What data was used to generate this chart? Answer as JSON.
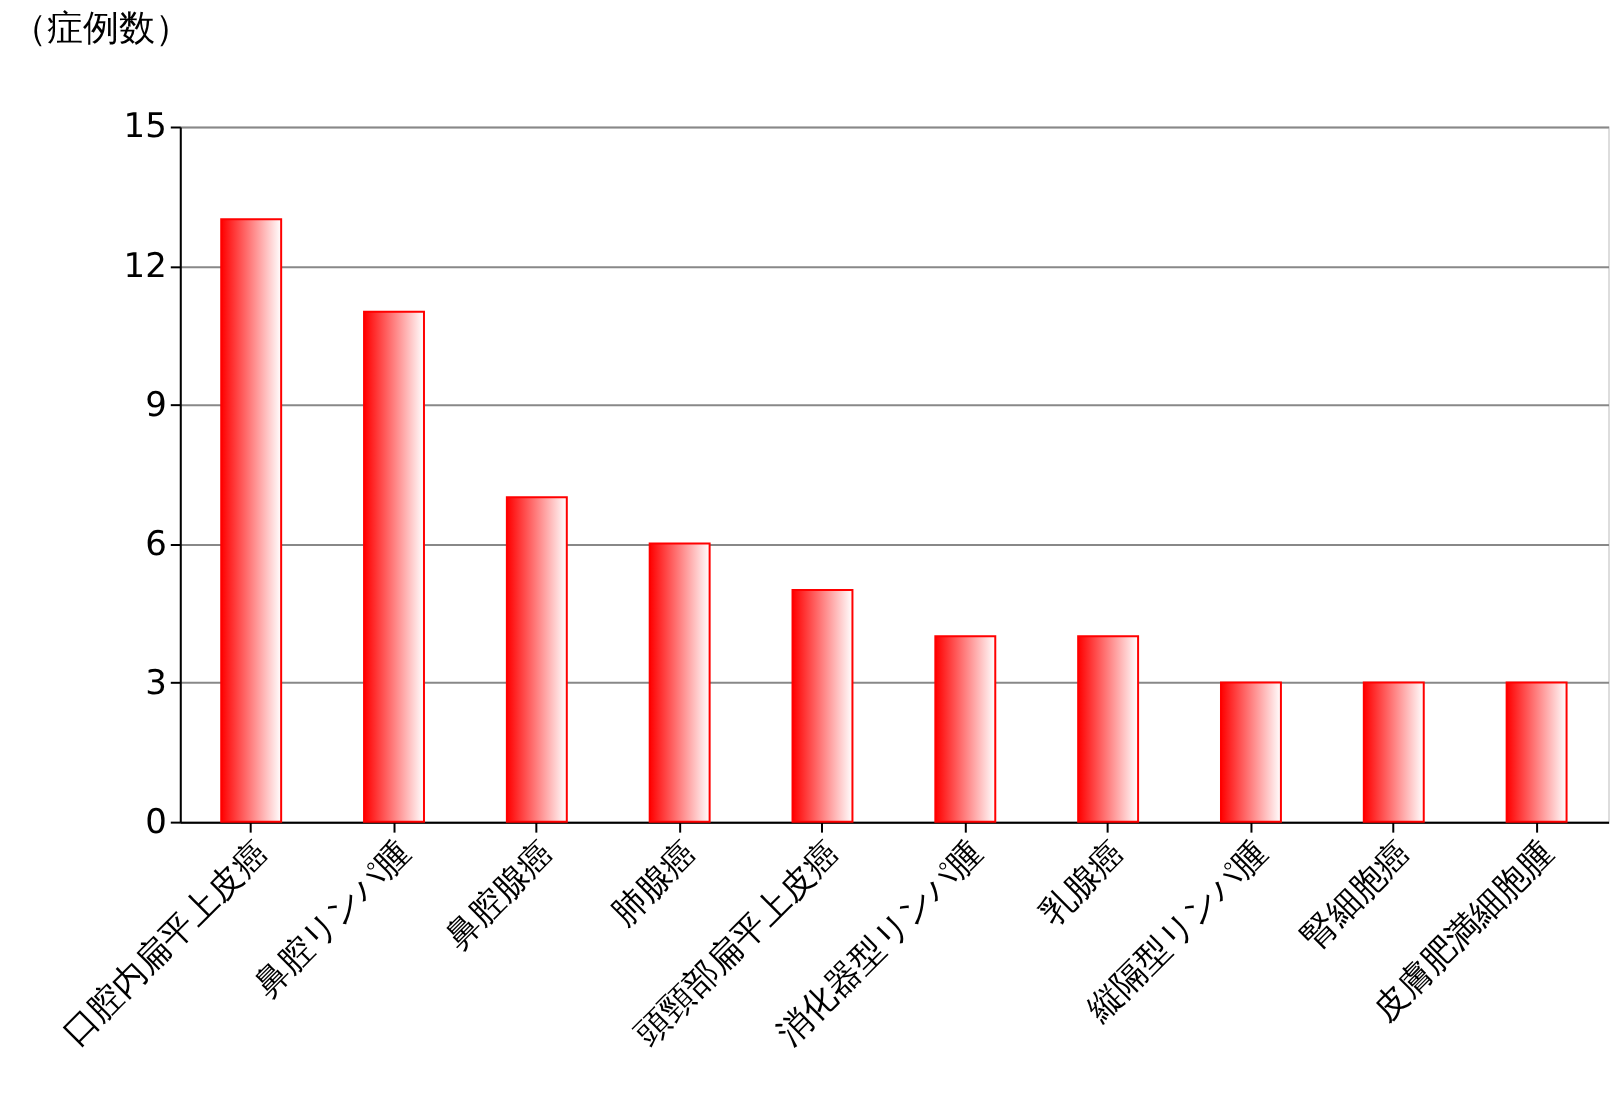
{
  "chart_data": {
    "type": "bar",
    "ylabel": "（症例数）",
    "categories": [
      "口腔内扁平上皮癌",
      "鼻腔リンパ腫",
      "鼻腔腺癌",
      "肺腺癌",
      "頭頸部扁平上皮癌",
      "消化器型リンパ腫",
      "乳腺癌",
      "縦隔型リンパ腫",
      "腎細胞癌",
      "皮膚肥満細胞腫"
    ],
    "values": [
      13,
      11,
      7,
      6,
      5,
      4,
      4,
      3,
      3,
      3
    ],
    "color": "#ff0000",
    "ylim": [
      0,
      15
    ],
    "yticks": [
      0,
      3,
      6,
      9,
      12,
      15
    ],
    "grid": "y",
    "legend": false
  }
}
